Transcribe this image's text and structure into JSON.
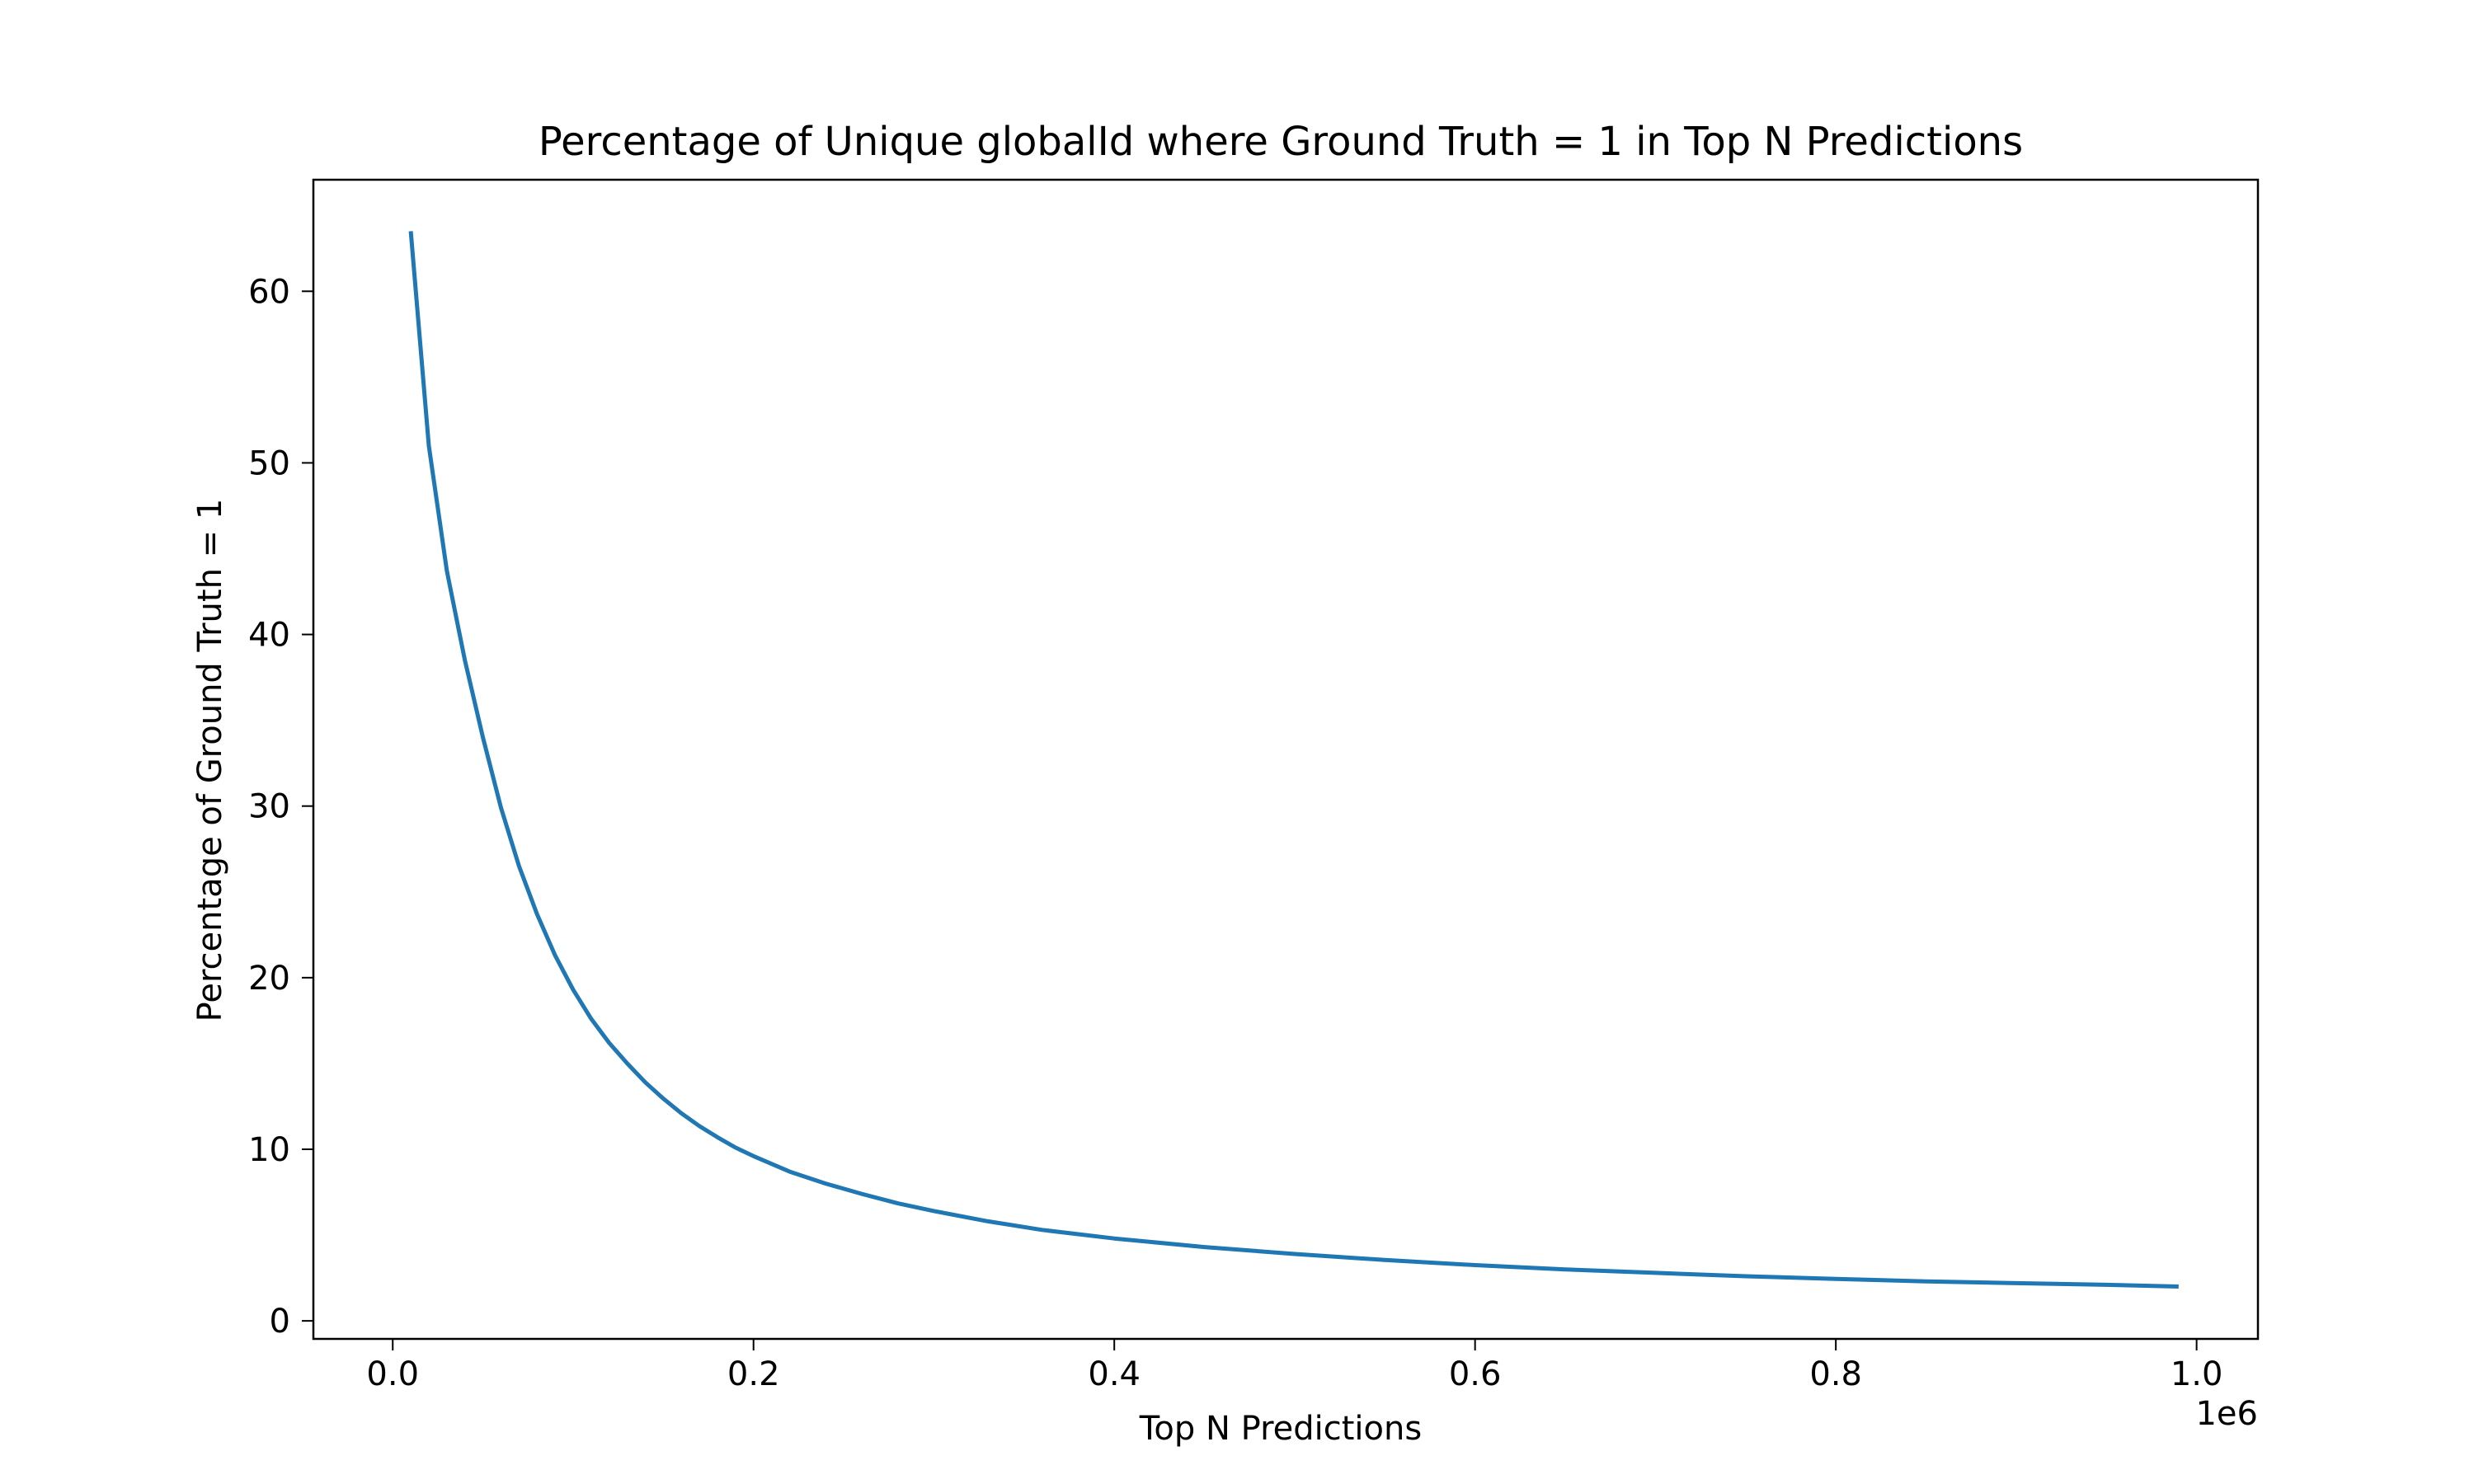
{
  "chart_data": {
    "type": "line",
    "title": "Percentage of Unique globalId where Ground Truth = 1 in Top N Predictions",
    "xlabel": "Top N Predictions",
    "ylabel": "Percentage of Ground Truth = 1",
    "x_offset_label": "1e6",
    "xlim": [
      -0.044,
      1.034
    ],
    "ylim": [
      -1.05,
      66.5
    ],
    "xticks": [
      0.0,
      0.2,
      0.4,
      0.6,
      0.8,
      1.0
    ],
    "xtick_labels": [
      "0.0",
      "0.2",
      "0.4",
      "0.6",
      "0.8",
      "1.0"
    ],
    "yticks": [
      0,
      10,
      20,
      30,
      40,
      50,
      60
    ],
    "ytick_labels": [
      "0",
      "10",
      "20",
      "30",
      "40",
      "50",
      "60"
    ],
    "grid": false,
    "line_color": "#1f77b4",
    "series": [
      {
        "x": [
          0.01,
          0.02,
          0.03,
          0.04,
          0.05,
          0.06,
          0.07,
          0.08,
          0.09,
          0.1,
          0.11,
          0.12,
          0.13,
          0.14,
          0.15,
          0.16,
          0.17,
          0.18,
          0.19,
          0.2,
          0.22,
          0.24,
          0.26,
          0.28,
          0.3,
          0.33,
          0.36,
          0.4,
          0.45,
          0.5,
          0.55,
          0.6,
          0.65,
          0.7,
          0.75,
          0.8,
          0.85,
          0.9,
          0.95,
          0.99
        ],
        "values": [
          63.5,
          51.0,
          43.7,
          38.5,
          34.0,
          29.9,
          26.5,
          23.7,
          21.3,
          19.3,
          17.6,
          16.2,
          15.0,
          13.9,
          12.95,
          12.1,
          11.35,
          10.7,
          10.1,
          9.6,
          8.7,
          8.0,
          7.4,
          6.85,
          6.4,
          5.8,
          5.3,
          4.8,
          4.3,
          3.9,
          3.55,
          3.25,
          3.0,
          2.8,
          2.6,
          2.45,
          2.3,
          2.2,
          2.1,
          2.0
        ]
      }
    ]
  }
}
